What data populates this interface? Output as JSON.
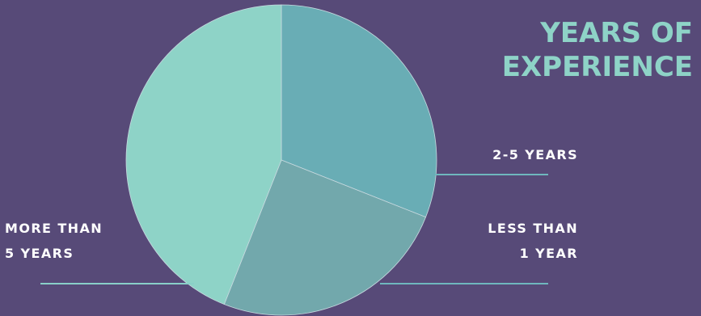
{
  "chart_data": {
    "type": "pie",
    "title_lines": [
      "YEARS OF",
      "EXPERIENCE"
    ],
    "start_angle_deg": 0,
    "direction": "clockwise",
    "slices": [
      {
        "label_lines": [
          "2-5 YEARS"
        ],
        "value": 31,
        "color": "#69adb5"
      },
      {
        "label_lines": [
          "LESS THAN",
          "1 YEAR"
        ],
        "value": 25,
        "color": "#72a8ac"
      },
      {
        "label_lines": [
          "MORE THAN",
          "5 YEARS"
        ],
        "value": 44,
        "color": "#8ed3c7"
      }
    ],
    "slice_border_color": "#c7d9df",
    "background_color": "#574a78",
    "title_color": "#8ed3c7",
    "label_color": "#ffffff",
    "leader_line_color": "#6fb7be"
  }
}
